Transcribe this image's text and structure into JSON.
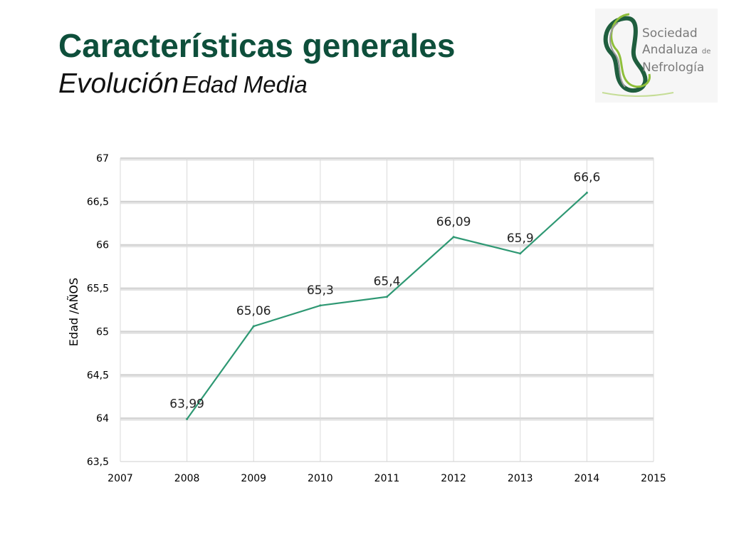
{
  "header": {
    "title": "Características generales",
    "subtitle_main": "Evolución",
    "subtitle_rest": "Edad Media"
  },
  "logo": {
    "line1": "Sociedad",
    "line2": "Andaluza",
    "line2_small": "de",
    "line3": "Nefrología"
  },
  "chart_data": {
    "type": "line",
    "x": [
      2008,
      2009,
      2010,
      2011,
      2012,
      2013,
      2014
    ],
    "y": [
      63.99,
      65.06,
      65.3,
      65.4,
      66.09,
      65.9,
      66.6
    ],
    "data_labels": [
      "63,99",
      "65,06",
      "65,3",
      "65,4",
      "66,09",
      "65,9",
      "66,6"
    ],
    "xlim": [
      2007,
      2015
    ],
    "ylim": [
      63.5,
      67
    ],
    "x_ticks": [
      2007,
      2008,
      2009,
      2010,
      2011,
      2012,
      2013,
      2014,
      2015
    ],
    "x_tick_labels": [
      "2007",
      "2008",
      "2009",
      "2010",
      "2011",
      "2012",
      "2013",
      "2014",
      "2015"
    ],
    "y_ticks": [
      63.5,
      64,
      64.5,
      65,
      65.5,
      66,
      66.5,
      67
    ],
    "y_tick_labels": [
      "63,5",
      "64",
      "64,5",
      "65",
      "65,5",
      "66",
      "66,5",
      "67"
    ],
    "xlabel": "",
    "ylabel": "Edad /AÑOS",
    "grid": true,
    "legend": "none",
    "line_color": "#2e9873"
  }
}
